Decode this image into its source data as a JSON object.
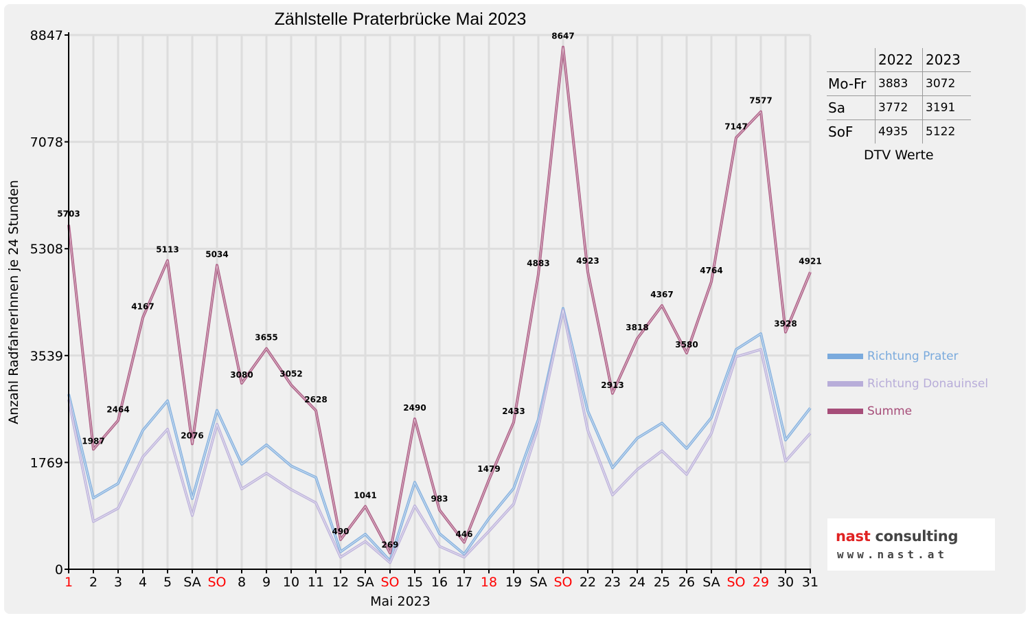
{
  "chart_data": {
    "type": "line",
    "title": "Zählstelle Praterbrücke Mai 2023",
    "xlabel": "Mai 2023",
    "ylabel": "Anzahl RadfahrerInnen je 24 Stunden",
    "ylim": [
      0,
      8847
    ],
    "yticks": [
      0,
      1769,
      3539,
      5308,
      7078,
      8847
    ],
    "grid": true,
    "legend_position": "right",
    "categories": [
      "1",
      "2",
      "3",
      "4",
      "5",
      "SA",
      "SO",
      "8",
      "9",
      "10",
      "11",
      "12",
      "SA",
      "SO",
      "15",
      "16",
      "17",
      "18",
      "19",
      "SA",
      "SO",
      "22",
      "23",
      "24",
      "25",
      "26",
      "SA",
      "SO",
      "29",
      "30",
      "31"
    ],
    "red_categories": [
      0,
      6,
      13,
      17,
      20,
      27,
      28
    ],
    "series": [
      {
        "name": "Richtung Prater",
        "color": "#7aaadd",
        "values": [
          2900,
          1180,
          1420,
          2300,
          2790,
          1170,
          2630,
          1740,
          2060,
          1710,
          1520,
          290,
          580,
          140,
          1440,
          590,
          250,
          840,
          1340,
          2480,
          4320,
          2620,
          1680,
          2170,
          2420,
          2000,
          2510,
          3640,
          3900,
          2140,
          2670
        ],
        "labels": false
      },
      {
        "name": "Richtung Donauinsel",
        "color": "#b8add9",
        "values": [
          2810,
          790,
          1010,
          1860,
          2320,
          890,
          2400,
          1330,
          1590,
          1320,
          1100,
          200,
          460,
          110,
          1050,
          380,
          200,
          630,
          1080,
          2360,
          4290,
          2300,
          1230,
          1650,
          1960,
          1570,
          2250,
          3520,
          3640,
          1790,
          2250
        ],
        "labels": false
      },
      {
        "name": "Summe",
        "color": "#a64d79",
        "values": [
          5703,
          1987,
          2464,
          4167,
          5113,
          2076,
          5034,
          3080,
          3655,
          3052,
          2628,
          490,
          1041,
          269,
          2490,
          983,
          446,
          1479,
          2433,
          4883,
          8647,
          4923,
          2913,
          3818,
          4367,
          3580,
          4764,
          7147,
          7577,
          3928,
          4921
        ],
        "labels": true
      }
    ]
  },
  "dtv_table": {
    "header": [
      "",
      "2022",
      "2023"
    ],
    "rows": [
      {
        "label": "Mo-Fr",
        "v2022": "3883",
        "v2023": "3072"
      },
      {
        "label": "Sa",
        "v2022": "3772",
        "v2023": "3191"
      },
      {
        "label": "SoF",
        "v2022": "4935",
        "v2023": "5122"
      }
    ],
    "caption": "DTV Werte"
  },
  "logo": {
    "name_part1": "nast",
    "name_part2": " consulting",
    "url": "www.nast.at"
  }
}
